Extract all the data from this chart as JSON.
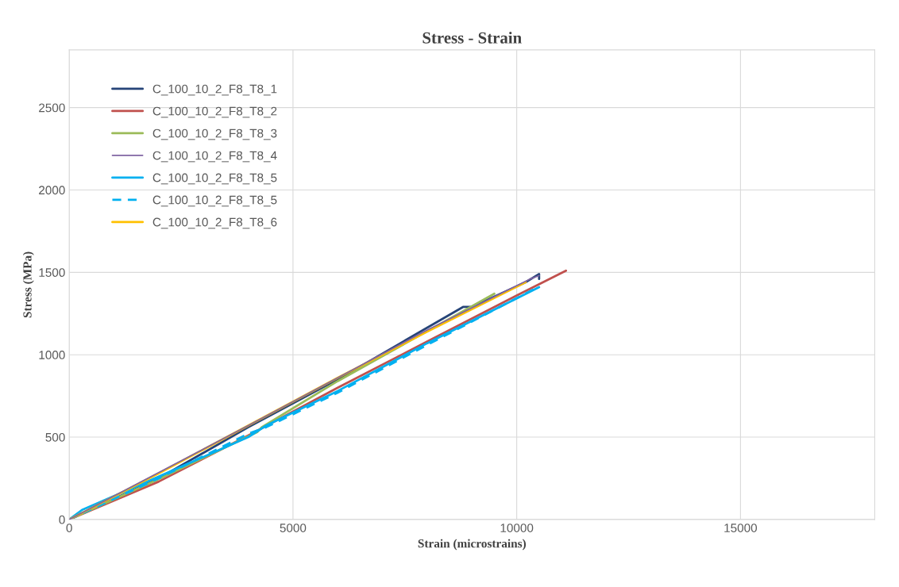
{
  "chart_data": {
    "type": "line",
    "title": "Stress - Strain",
    "xlabel": "Strain (microstrains)",
    "ylabel": "Stress (MPa)",
    "xlim": [
      0,
      18000
    ],
    "xticks": [
      0,
      5000,
      10000,
      15000
    ],
    "ylim": [
      0,
      2850
    ],
    "yticks": [
      0,
      500,
      1000,
      1500,
      2000,
      2500
    ],
    "grid": true,
    "legend": "top left",
    "marker": "none",
    "series": [
      {
        "name": "C_100_10_2_F8_T8_1",
        "color": "#264478",
        "line_style": "solid",
        "x": [
          0,
          2000,
          4000,
          6000,
          8800,
          9000,
          9400,
          10200,
          10500,
          10500
        ],
        "values": [
          0,
          250,
          560,
          850,
          1290,
          1290,
          1340,
          1440,
          1490,
          1460
        ]
      },
      {
        "name": "C_100_10_2_F8_T8_2",
        "color": "#c0504d",
        "line_style": "solid",
        "x": [
          0,
          2000,
          4000,
          6000,
          8000,
          10000,
          11100
        ],
        "values": [
          0,
          230,
          510,
          800,
          1080,
          1360,
          1510
        ]
      },
      {
        "name": "C_100_10_2_F8_T8_3",
        "color": "#9bbb59",
        "line_style": "solid",
        "x": [
          0,
          2000,
          4200,
          4300,
          6000,
          9500
        ],
        "values": [
          0,
          245,
          530,
          560,
          840,
          1370
        ]
      },
      {
        "name": "C_100_10_2_F8_T8_4",
        "color": "#8064a2",
        "line_style": "solid",
        "x": [
          0,
          4000,
          8000,
          10300,
          10500
        ],
        "values": [
          0,
          570,
          1150,
          1460,
          1480
        ]
      },
      {
        "name": "C_100_10_2_F8_T8_5",
        "color": "#00b0f0",
        "line_style": "solid",
        "x": [
          0,
          300,
          2000,
          4000,
          4400,
          6000,
          8000,
          10500
        ],
        "values": [
          0,
          60,
          260,
          500,
          570,
          780,
          1070,
          1410
        ]
      },
      {
        "name": "C_100_10_2_F8_T8_5",
        "color": "#00b0f0",
        "line_style": "dashed",
        "x": [
          0,
          2000,
          4000,
          4400,
          6000,
          8000,
          10400
        ],
        "values": [
          0,
          250,
          520,
          560,
          770,
          1060,
          1400
        ]
      },
      {
        "name": "C_100_10_2_F8_T8_6",
        "color": "#ffc000",
        "line_style": "solid",
        "x": [
          0,
          2000,
          4000,
          6000,
          8000,
          10200
        ],
        "values": [
          0,
          280,
          570,
          860,
          1140,
          1440
        ]
      }
    ]
  }
}
